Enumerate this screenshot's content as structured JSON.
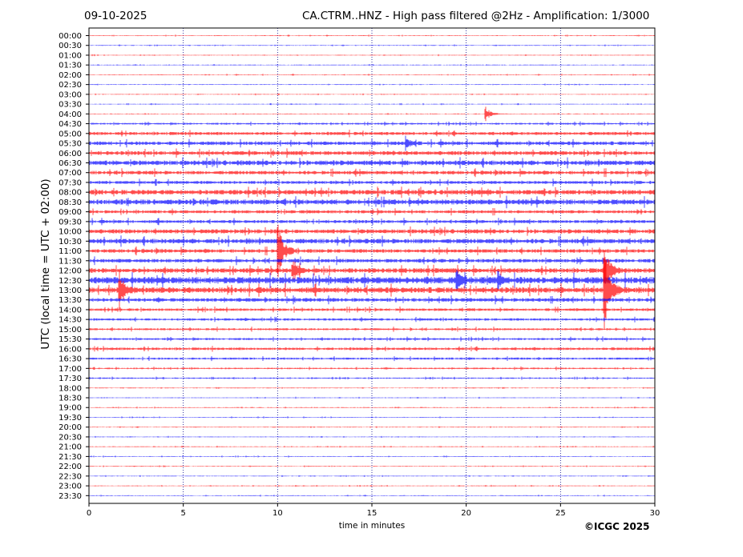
{
  "header": {
    "date": "09-10-2025",
    "title": "CA.CTRM..HNZ - High pass filtered @2Hz - Amplification: 1/3000"
  },
  "footer": {
    "copyright": "©ICGC 2025"
  },
  "colors": {
    "trace_a": "#ff0000",
    "trace_b": "#0000ff",
    "grid": "#00008b",
    "axis": "#000000"
  },
  "chart_data": {
    "type": "line",
    "title": "CA.CTRM..HNZ - High pass filtered @2Hz - Amplification: 1/3000",
    "xlabel": "time in minutes",
    "ylabel": "UTC (local time = UTC + 02:00)",
    "xlim": [
      0,
      30
    ],
    "x_ticks": [
      0,
      5,
      10,
      15,
      20,
      25,
      30
    ],
    "grid": "vertical dotted lines at 5-minute intervals",
    "y_ticks": [
      "00:00",
      "00:30",
      "01:00",
      "01:30",
      "02:00",
      "02:30",
      "03:00",
      "03:30",
      "04:00",
      "04:30",
      "05:00",
      "05:30",
      "06:00",
      "06:30",
      "07:00",
      "07:30",
      "08:00",
      "08:30",
      "09:00",
      "09:30",
      "10:00",
      "10:30",
      "11:00",
      "11:30",
      "12:00",
      "12:30",
      "13:00",
      "13:30",
      "14:00",
      "14:30",
      "15:00",
      "15:30",
      "16:00",
      "16:30",
      "17:00",
      "17:30",
      "18:00",
      "18:30",
      "19:00",
      "19:30",
      "20:00",
      "20:30",
      "21:00",
      "21:30",
      "22:00",
      "22:30",
      "23:00",
      "23:30"
    ],
    "series_colors_alternating": [
      "red",
      "blue"
    ],
    "noise_levels": [
      0.3,
      0.3,
      0.3,
      0.3,
      0.3,
      0.3,
      0.3,
      0.3,
      0.3,
      0.7,
      1.2,
      1.4,
      1.5,
      1.8,
      1.4,
      1.2,
      1.8,
      2.0,
      1.2,
      1.2,
      1.6,
      1.8,
      1.4,
      1.4,
      1.8,
      2.6,
      2.2,
      1.4,
      1.0,
      0.9,
      0.8,
      0.8,
      1.0,
      0.8,
      0.6,
      0.5,
      0.3,
      0.3,
      0.3,
      0.3,
      0.3,
      0.3,
      0.3,
      0.3,
      0.3,
      0.3,
      0.3,
      0.3
    ],
    "events": [
      {
        "row": "04:00",
        "minute": 21.0,
        "amplitude": 10
      },
      {
        "row": "05:30",
        "minute": 16.8,
        "amplitude": 8
      },
      {
        "row": "11:00",
        "minute": 10.0,
        "amplitude": 40
      },
      {
        "row": "12:00",
        "minute": 10.8,
        "amplitude": 14
      },
      {
        "row": "12:00",
        "minute": 27.3,
        "amplitude": 40
      },
      {
        "row": "12:30",
        "minute": 19.5,
        "amplitude": 12
      },
      {
        "row": "12:30",
        "minute": 21.7,
        "amplitude": 10
      },
      {
        "row": "13:00",
        "minute": 1.6,
        "amplitude": 22
      },
      {
        "row": "13:00",
        "minute": 27.3,
        "amplitude": 60
      }
    ]
  }
}
